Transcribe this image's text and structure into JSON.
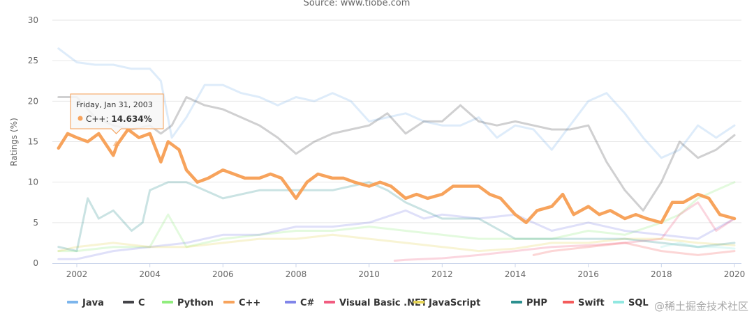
{
  "chart_data": {
    "type": "line",
    "title": "",
    "subtitle": "Source: www.tiobe.com",
    "xlabel": "",
    "ylabel": "Ratings (%)",
    "ylim": [
      0,
      30
    ],
    "xlim": [
      2001.5,
      2020.2
    ],
    "yticks": [
      "0",
      "5",
      "10",
      "15",
      "20",
      "25",
      "30"
    ],
    "xticks": [
      "2002",
      "2004",
      "2006",
      "2008",
      "2010",
      "2012",
      "2014",
      "2016",
      "2018",
      "2020"
    ],
    "grid": true,
    "legend_position": "bottom",
    "highlighted_series": "C++",
    "series": [
      {
        "name": "Java",
        "color": "#7cb5ec",
        "faded": true,
        "x": [
          2001.5,
          2002,
          2002.5,
          2003,
          2003.5,
          2004,
          2004.3,
          2004.6,
          2005,
          2005.5,
          2006,
          2006.5,
          2007,
          2007.5,
          2008,
          2008.5,
          2009,
          2009.5,
          2010,
          2010.5,
          2011,
          2011.5,
          2012,
          2012.5,
          2013,
          2013.5,
          2014,
          2014.5,
          2015,
          2015.5,
          2016,
          2016.5,
          2017,
          2017.5,
          2018,
          2018.5,
          2019,
          2019.5,
          2020
        ],
        "values": [
          26.5,
          24.8,
          24.5,
          24.5,
          24,
          24,
          22.5,
          15.5,
          18,
          22,
          22,
          21,
          20.5,
          19.5,
          20.5,
          20,
          21,
          20,
          17.5,
          18,
          18.5,
          17.5,
          17,
          17,
          18,
          15.5,
          17,
          16.5,
          14,
          17,
          20,
          21,
          18.5,
          15.5,
          13,
          14,
          17,
          15.5,
          17
        ]
      },
      {
        "name": "C",
        "color": "#434348",
        "faded": true,
        "x": [
          2001.5,
          2002,
          2002.5,
          2003,
          2003.5,
          2004,
          2004.3,
          2004.6,
          2005,
          2005.5,
          2006,
          2006.5,
          2007,
          2007.5,
          2008,
          2008.5,
          2009,
          2009.5,
          2010,
          2010.5,
          2011,
          2011.5,
          2012,
          2012.5,
          2013,
          2013.5,
          2014,
          2014.5,
          2015,
          2015.5,
          2016,
          2016.5,
          2017,
          2017.5,
          2018,
          2018.5,
          2019,
          2019.5,
          2020
        ],
        "values": [
          20.5,
          20.5,
          18,
          17,
          16.5,
          17,
          16,
          17,
          20.5,
          19.5,
          19,
          18,
          17,
          15.5,
          13.5,
          15,
          16,
          16.5,
          17,
          18.5,
          16,
          17.5,
          17.5,
          19.5,
          17.5,
          17,
          17.5,
          17,
          16.5,
          16.5,
          17,
          12.5,
          9,
          6.5,
          10,
          15,
          13,
          14,
          15.8
        ]
      },
      {
        "name": "Python",
        "color": "#90ed7d",
        "faded": true,
        "x": [
          2001.5,
          2002,
          2003,
          2004,
          2004.5,
          2005,
          2006,
          2007,
          2008,
          2009,
          2010,
          2011,
          2012,
          2013,
          2014,
          2015,
          2016,
          2017,
          2018,
          2018.5,
          2019,
          2019.5,
          2020
        ],
        "values": [
          1.5,
          1.5,
          2,
          2,
          6,
          2,
          3,
          3.5,
          4,
          4,
          4.5,
          4,
          3.5,
          3,
          3,
          3,
          4,
          3.5,
          5,
          6,
          8,
          9,
          10
        ]
      },
      {
        "name": "C++",
        "color": "#f7a35c",
        "faded": false,
        "x": [
          2001.5,
          2001.75,
          2002,
          2002.3,
          2002.6,
          2003,
          2003.1,
          2003.4,
          2003.7,
          2004,
          2004.3,
          2004.5,
          2004.8,
          2005,
          2005.3,
          2005.6,
          2006,
          2006.3,
          2006.6,
          2007,
          2007.3,
          2007.6,
          2008,
          2008.3,
          2008.6,
          2009,
          2009.3,
          2009.6,
          2010,
          2010.3,
          2010.6,
          2011,
          2011.3,
          2011.6,
          2012,
          2012.3,
          2012.6,
          2013,
          2013.3,
          2013.6,
          2014,
          2014.3,
          2014.6,
          2015,
          2015.3,
          2015.6,
          2016,
          2016.3,
          2016.6,
          2017,
          2017.3,
          2017.6,
          2018,
          2018.3,
          2018.6,
          2019,
          2019.3,
          2019.6,
          2020
        ],
        "values": [
          14.2,
          16,
          15.5,
          15,
          16,
          13.3,
          14.6,
          16.5,
          15.5,
          16,
          12.5,
          15,
          14,
          11.5,
          10,
          10.5,
          11.5,
          11,
          10.5,
          10.5,
          11,
          10.5,
          8,
          10,
          11,
          10.5,
          10.5,
          10,
          9.5,
          10,
          9.5,
          8,
          8.5,
          8,
          8.5,
          9.5,
          9.5,
          9.5,
          8.5,
          8,
          6,
          5,
          6.5,
          7,
          8.5,
          6,
          7,
          6,
          6.5,
          5.5,
          6,
          5.5,
          5,
          7.5,
          7.5,
          8.5,
          8,
          6,
          5.5
        ]
      },
      {
        "name": "C#",
        "color": "#8085e9",
        "faded": true,
        "x": [
          2001.5,
          2002,
          2003,
          2004,
          2005,
          2006,
          2007,
          2008,
          2009,
          2010,
          2011,
          2011.5,
          2012,
          2013,
          2014,
          2015,
          2016,
          2017,
          2018,
          2019,
          2020
        ],
        "values": [
          0.5,
          0.5,
          1.5,
          2,
          2.5,
          3.5,
          3.5,
          4.5,
          4.5,
          5,
          6.5,
          5.5,
          6,
          5.5,
          6,
          4,
          5,
          4,
          3.5,
          3,
          5.5
        ]
      },
      {
        "name": "Visual Basic .NET",
        "color": "#f15c80",
        "faded": true,
        "x": [
          2010.7,
          2011,
          2012,
          2013,
          2014,
          2015,
          2016,
          2017,
          2018,
          2018.5,
          2019,
          2019.5,
          2020
        ],
        "values": [
          0.3,
          0.4,
          0.6,
          1,
          1.5,
          2,
          2.2,
          2.5,
          3,
          6,
          7.5,
          4,
          5.5
        ]
      },
      {
        "name": "JavaScript",
        "color": "#e4d354",
        "faded": true,
        "x": [
          2001.5,
          2002,
          2003,
          2004,
          2005,
          2006,
          2007,
          2008,
          2009,
          2010,
          2011,
          2012,
          2013,
          2014,
          2015,
          2016,
          2017,
          2018,
          2019,
          2020
        ],
        "values": [
          1.5,
          2,
          2.5,
          2,
          2,
          2.5,
          3,
          3,
          3.5,
          3,
          2.5,
          2,
          1.5,
          1.8,
          2.5,
          2.5,
          3,
          3,
          2.5,
          2.2
        ]
      },
      {
        "name": "PHP",
        "color": "#2b908f",
        "faded": true,
        "x": [
          2001.5,
          2002,
          2002.3,
          2002.6,
          2003,
          2003.5,
          2003.8,
          2004,
          2004.5,
          2005,
          2006,
          2007,
          2008,
          2009,
          2010,
          2010.5,
          2011,
          2012,
          2013,
          2014,
          2015,
          2016,
          2017,
          2018,
          2019,
          2020
        ],
        "values": [
          2,
          1.5,
          8,
          5.5,
          6.5,
          4,
          5,
          9,
          10,
          10,
          8,
          9,
          9,
          9,
          10,
          9,
          7.5,
          5.5,
          5.5,
          3,
          3,
          3,
          3,
          2.5,
          2,
          2.5
        ]
      },
      {
        "name": "Swift",
        "color": "#f45b5b",
        "faded": true,
        "x": [
          2014.5,
          2015,
          2016,
          2017,
          2018,
          2019,
          2020
        ],
        "values": [
          1,
          1.5,
          2,
          2.5,
          1.5,
          1,
          1.5
        ]
      },
      {
        "name": "SQL",
        "color": "#91e8e1",
        "faded": true,
        "x": [
          2018,
          2018.5,
          2019,
          2019.5,
          2020
        ],
        "values": [
          2,
          2.5,
          2,
          2,
          1.8
        ]
      }
    ],
    "tooltip": {
      "date": "Friday, Jan 31, 2003",
      "series": "C++",
      "label": "C++: ",
      "value": "14.634%",
      "x": 2003.08,
      "y": 14.634
    }
  },
  "watermark": "@稀土掘金技术社区"
}
